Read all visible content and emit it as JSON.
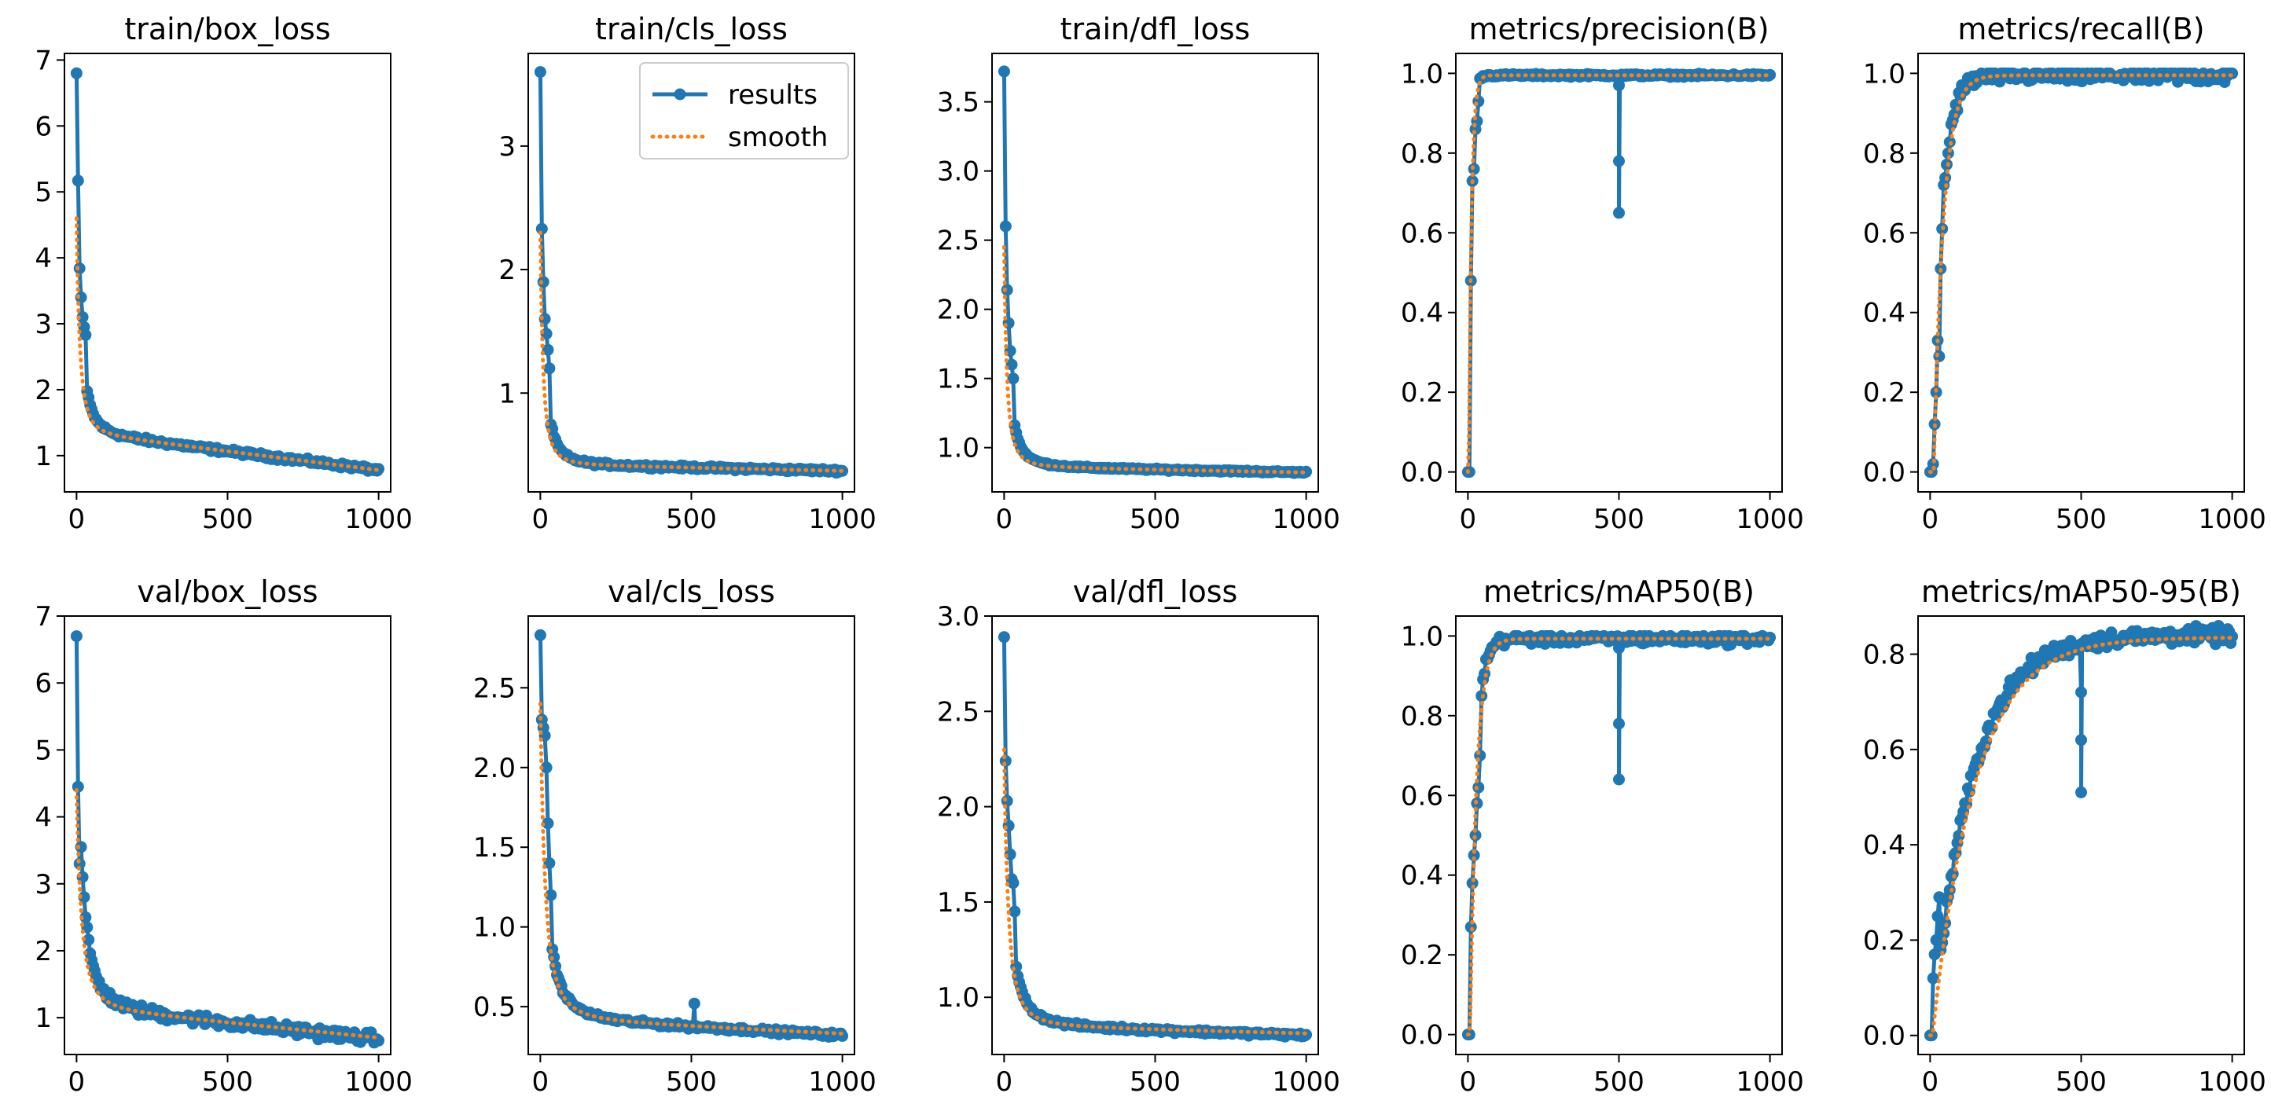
{
  "figure": {
    "colors": {
      "results": "#1f77b4",
      "smooth": "#ff7f0e",
      "axes": "#000000",
      "background": "#ffffff"
    },
    "legend": {
      "placement": "top-right",
      "panel": 1,
      "entries": [
        "results",
        "smooth"
      ]
    }
  },
  "chart_data": [
    {
      "type": "line",
      "title": "train/box_loss",
      "xlim": [
        -40,
        1040
      ],
      "ylim": [
        0.45,
        7.1
      ],
      "xticks": [
        0,
        500,
        1000
      ],
      "yticks": [
        1,
        2,
        3,
        4,
        5,
        6,
        7
      ],
      "series": [
        {
          "name": "results",
          "curve": "decay",
          "params": {
            "start": 6.8,
            "end": 0.78,
            "mid": 1.35,
            "tau": 28,
            "pow": 0.38
          },
          "early": [
            6.8,
            5.17,
            3.84,
            3.4,
            3.1,
            2.95,
            2.83
          ],
          "noise": 0.05
        },
        {
          "name": "smooth",
          "curve": "decay",
          "params": {
            "start": 4.6,
            "end": 0.78,
            "mid": 1.35,
            "tau": 28,
            "pow": 0.38
          }
        }
      ]
    },
    {
      "type": "line",
      "title": "train/cls_loss",
      "xlim": [
        -40,
        1040
      ],
      "ylim": [
        0.2,
        3.75
      ],
      "xticks": [
        0,
        500,
        1000
      ],
      "yticks": [
        1,
        2,
        3
      ],
      "series": [
        {
          "name": "results",
          "curve": "decay",
          "params": {
            "start": 3.6,
            "end": 0.37,
            "mid": 0.42,
            "tau": 20,
            "pow": 0.45
          },
          "early": [
            3.6,
            2.33,
            1.9,
            1.6,
            1.48,
            1.35,
            1.2
          ],
          "noise": 0.02
        },
        {
          "name": "smooth",
          "curve": "decay",
          "params": {
            "start": 2.3,
            "end": 0.37,
            "mid": 0.42,
            "tau": 20,
            "pow": 0.45
          }
        }
      ]
    },
    {
      "type": "line",
      "title": "train/dfl_loss",
      "xlim": [
        -40,
        1040
      ],
      "ylim": [
        0.68,
        3.85
      ],
      "xticks": [
        0,
        500,
        1000
      ],
      "yticks": [
        1.0,
        1.5,
        2.0,
        2.5,
        3.0,
        3.5
      ],
      "series": [
        {
          "name": "results",
          "curve": "decay",
          "params": {
            "start": 3.72,
            "end": 0.82,
            "mid": 0.86,
            "tau": 20,
            "pow": 0.45
          },
          "early": [
            3.72,
            2.6,
            2.14,
            1.9,
            1.7,
            1.6,
            1.5
          ],
          "noise": 0.01
        },
        {
          "name": "smooth",
          "curve": "decay",
          "params": {
            "start": 2.45,
            "end": 0.82,
            "mid": 0.86,
            "tau": 20,
            "pow": 0.45
          }
        }
      ]
    },
    {
      "type": "line",
      "title": "metrics/precision(B)",
      "xlim": [
        -40,
        1040
      ],
      "ylim": [
        -0.05,
        1.05
      ],
      "xticks": [
        0,
        500,
        1000
      ],
      "yticks": [
        0.0,
        0.2,
        0.4,
        0.6,
        0.8,
        1.0
      ],
      "series": [
        {
          "name": "results",
          "curve": "rise",
          "params": {
            "final": 0.995,
            "tau": 8,
            "delay": 2
          },
          "early": [
            0.0,
            0.0,
            0.48,
            0.73,
            0.76,
            0.86,
            0.88,
            0.93
          ],
          "dip": {
            "x": 500,
            "values": [
              0.97,
              0.78,
              0.65
            ]
          },
          "noise": 0.005
        },
        {
          "name": "smooth",
          "curve": "rise",
          "params": {
            "final": 0.995,
            "tau": 9,
            "delay": 3
          }
        }
      ]
    },
    {
      "type": "line",
      "title": "metrics/recall(B)",
      "xlim": [
        -40,
        1040
      ],
      "ylim": [
        -0.05,
        1.05
      ],
      "xticks": [
        0,
        500,
        1000
      ],
      "yticks": [
        0.0,
        0.2,
        0.4,
        0.6,
        0.8,
        1.0
      ],
      "series": [
        {
          "name": "results",
          "curve": "rise",
          "params": {
            "final": 0.995,
            "tau": 30,
            "delay": 10
          },
          "early": [
            0.0,
            0.0,
            0.02,
            0.12,
            0.2,
            0.33,
            0.29,
            0.51,
            0.61,
            0.72
          ],
          "dip": {
            "x": 500,
            "values": [
              0.98
            ]
          },
          "noise": 0.03
        },
        {
          "name": "smooth",
          "curve": "rise",
          "params": {
            "final": 0.995,
            "tau": 32,
            "delay": 12
          }
        }
      ]
    },
    {
      "type": "line",
      "title": "val/box_loss",
      "xlim": [
        -40,
        1040
      ],
      "ylim": [
        0.45,
        7.0
      ],
      "xticks": [
        0,
        500,
        1000
      ],
      "yticks": [
        1,
        2,
        3,
        4,
        5,
        6,
        7
      ],
      "series": [
        {
          "name": "results",
          "curve": "decay",
          "params": {
            "start": 6.7,
            "end": 0.68,
            "mid": 1.15,
            "tau": 40,
            "pow": 0.4
          },
          "early": [
            6.7,
            4.45,
            3.3,
            3.55,
            3.1,
            2.8,
            2.5,
            2.35
          ],
          "noise": 0.12
        },
        {
          "name": "smooth",
          "curve": "decay",
          "params": {
            "start": 4.4,
            "end": 0.7,
            "mid": 1.15,
            "tau": 40,
            "pow": 0.4
          }
        }
      ]
    },
    {
      "type": "line",
      "title": "val/cls_loss",
      "xlim": [
        -40,
        1040
      ],
      "ylim": [
        0.2,
        2.95
      ],
      "xticks": [
        0,
        500,
        1000
      ],
      "yticks": [
        0.5,
        1.0,
        1.5,
        2.0,
        2.5
      ],
      "series": [
        {
          "name": "results",
          "curve": "decay",
          "params": {
            "start": 2.83,
            "end": 0.32,
            "mid": 0.42,
            "tau": 35,
            "pow": 0.45
          },
          "early": [
            2.83,
            2.3,
            2.25,
            2.2,
            2.0,
            1.65,
            1.4,
            1.2
          ],
          "dip": {
            "x": 510,
            "values": [
              0.52
            ]
          },
          "noise": 0.02
        },
        {
          "name": "smooth",
          "curve": "decay",
          "params": {
            "start": 2.4,
            "end": 0.33,
            "mid": 0.42,
            "tau": 35,
            "pow": 0.45
          }
        }
      ]
    },
    {
      "type": "line",
      "title": "val/dfl_loss",
      "xlim": [
        -40,
        1040
      ],
      "ylim": [
        0.7,
        3.0
      ],
      "xticks": [
        0,
        500,
        1000
      ],
      "yticks": [
        1.0,
        1.5,
        2.0,
        2.5,
        3.0
      ],
      "series": [
        {
          "name": "results",
          "curve": "decay",
          "params": {
            "start": 2.89,
            "end": 0.8,
            "mid": 0.85,
            "tau": 30,
            "pow": 0.45
          },
          "early": [
            2.89,
            2.24,
            2.03,
            1.9,
            1.75,
            1.62,
            1.6,
            1.45
          ],
          "noise": 0.015
        },
        {
          "name": "smooth",
          "curve": "decay",
          "params": {
            "start": 2.3,
            "end": 0.81,
            "mid": 0.85,
            "tau": 30,
            "pow": 0.45
          }
        }
      ]
    },
    {
      "type": "line",
      "title": "metrics/mAP50(B)",
      "xlim": [
        -40,
        1040
      ],
      "ylim": [
        -0.05,
        1.05
      ],
      "xticks": [
        0,
        500,
        1000
      ],
      "yticks": [
        0.0,
        0.2,
        0.4,
        0.6,
        0.8,
        1.0
      ],
      "series": [
        {
          "name": "results",
          "curve": "rise",
          "params": {
            "final": 0.993,
            "tau": 20,
            "delay": 5
          },
          "early": [
            0.0,
            0.0,
            0.27,
            0.38,
            0.45,
            0.5,
            0.58,
            0.62,
            0.7
          ],
          "dip": {
            "x": 500,
            "values": [
              0.97,
              0.78,
              0.64
            ]
          },
          "noise": 0.02
        },
        {
          "name": "smooth",
          "curve": "rise",
          "params": {
            "final": 0.993,
            "tau": 22,
            "delay": 7
          }
        }
      ]
    },
    {
      "type": "line",
      "title": "metrics/mAP50-95(B)",
      "xlim": [
        -40,
        1040
      ],
      "ylim": [
        -0.04,
        0.88
      ],
      "xticks": [
        0,
        500,
        1000
      ],
      "yticks": [
        0.0,
        0.2,
        0.4,
        0.6,
        0.8
      ],
      "series": [
        {
          "name": "results",
          "curve": "rise",
          "params": {
            "final": 0.84,
            "tau": 130,
            "delay": 5
          },
          "early": [
            0.0,
            0.0,
            0.12,
            0.17,
            0.2,
            0.25,
            0.29
          ],
          "dip": {
            "x": 500,
            "values": [
              0.72,
              0.62,
              0.51
            ]
          },
          "noise": 0.025
        },
        {
          "name": "smooth",
          "curve": "rise",
          "params": {
            "final": 0.835,
            "tau": 140,
            "delay": 8
          }
        }
      ]
    }
  ]
}
